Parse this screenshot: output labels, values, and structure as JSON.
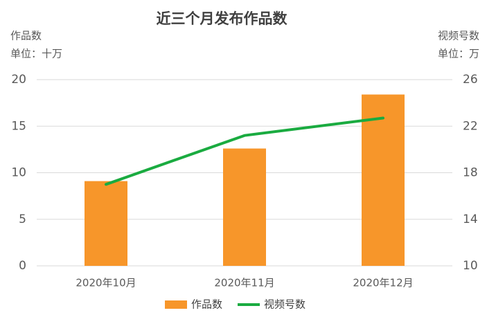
{
  "chart_data": {
    "type": "bar",
    "title": "近三个月发布作品数",
    "y_label": "作品数",
    "y_unit": "单位：十万",
    "y2_label": "视频号数",
    "y2_unit": "单位：万",
    "categories": [
      "2020年10月",
      "2020年11月",
      "2020年12月"
    ],
    "series": [
      {
        "name": "作品数",
        "color": "#f7962a",
        "type": "bar",
        "values": [
          9.1,
          12.6,
          18.4
        ]
      },
      {
        "name": "视频号数",
        "color": "#1aab40",
        "type": "line",
        "axis": "y2",
        "values": [
          17,
          21.2,
          22.7
        ]
      }
    ],
    "ylim": [
      0,
      20
    ],
    "yticks": [
      0,
      5,
      10,
      15,
      20
    ],
    "y2lim": [
      10,
      26
    ],
    "y2ticks": [
      10,
      14,
      18,
      22,
      26
    ],
    "grid": true,
    "legend": "bottom"
  }
}
